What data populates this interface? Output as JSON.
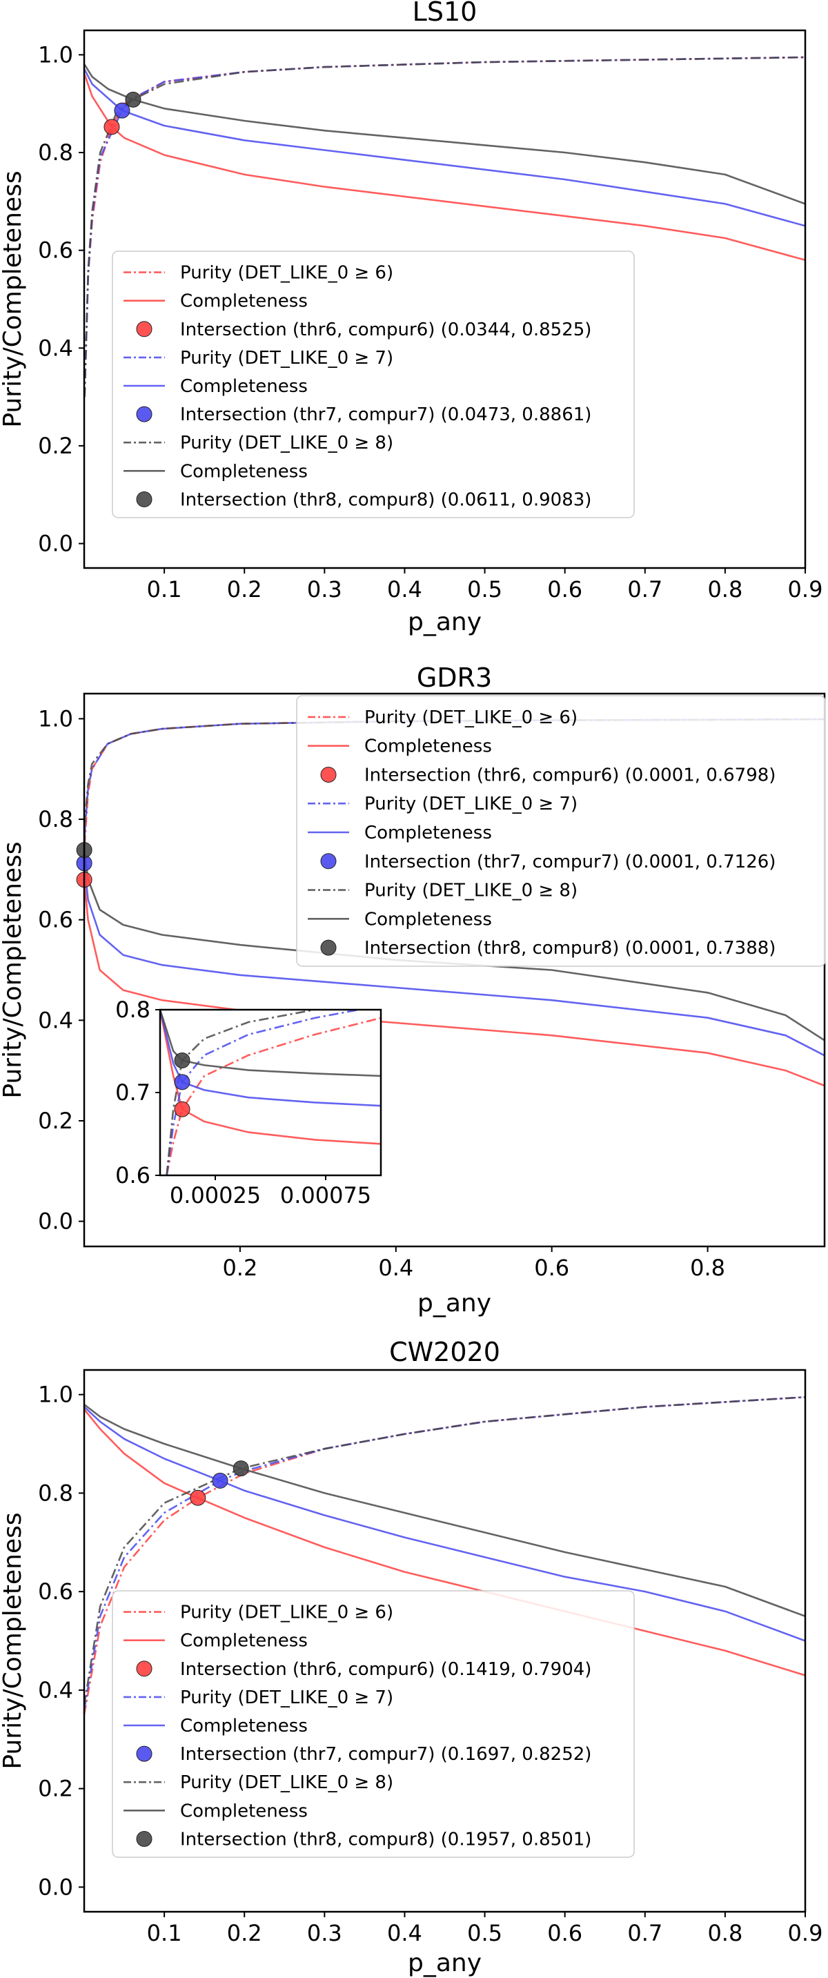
{
  "colors": {
    "thr6": "#ff4040",
    "thr7": "#4848f0",
    "thr8": "#484848"
  },
  "chart_data": [
    {
      "type": "line",
      "title": "LS10",
      "xlabel": "p_any",
      "ylabel": "Purity/Completeness",
      "xlim": [
        0.0,
        0.9
      ],
      "ylim": [
        -0.05,
        1.05
      ],
      "xticks": [
        "0.1",
        "0.2",
        "0.3",
        "0.4",
        "0.5",
        "0.6",
        "0.7",
        "0.8",
        "0.9"
      ],
      "yticks": [
        "0.0",
        "0.2",
        "0.4",
        "0.6",
        "0.8",
        "1.0"
      ],
      "grid": false,
      "legend_position": "lower-left",
      "series": [
        {
          "name": "Purity (DET_LIKE_0 ≥ 6)",
          "style": "dashdot",
          "color": "#ff4040",
          "x": [
            0.0005,
            0.005,
            0.01,
            0.02,
            0.0344,
            0.05,
            0.1,
            0.2,
            0.3,
            0.5,
            0.7,
            0.9
          ],
          "y": [
            0.3,
            0.55,
            0.66,
            0.78,
            0.8525,
            0.9,
            0.945,
            0.965,
            0.975,
            0.985,
            0.99,
            0.995
          ]
        },
        {
          "name": "Completeness",
          "style": "solid",
          "color": "#ff4040",
          "x": [
            0.0005,
            0.01,
            0.0344,
            0.05,
            0.1,
            0.2,
            0.3,
            0.4,
            0.5,
            0.6,
            0.7,
            0.8,
            0.9
          ],
          "y": [
            0.96,
            0.915,
            0.8525,
            0.83,
            0.795,
            0.755,
            0.73,
            0.71,
            0.69,
            0.67,
            0.65,
            0.625,
            0.58
          ]
        },
        {
          "name": "Intersection (thr6, compur6) (0.0344, 0.8525)",
          "style": "marker",
          "color": "#ff4040",
          "x": [
            0.0344
          ],
          "y": [
            0.8525
          ]
        },
        {
          "name": "Purity (DET_LIKE_0 ≥ 7)",
          "style": "dashdot",
          "color": "#4848f0",
          "x": [
            0.0005,
            0.005,
            0.01,
            0.02,
            0.0473,
            0.06,
            0.1,
            0.2,
            0.3,
            0.5,
            0.7,
            0.9
          ],
          "y": [
            0.3,
            0.55,
            0.67,
            0.79,
            0.8861,
            0.91,
            0.945,
            0.965,
            0.975,
            0.985,
            0.99,
            0.995
          ]
        },
        {
          "name": "Completeness",
          "style": "solid",
          "color": "#4848f0",
          "x": [
            0.0005,
            0.01,
            0.0473,
            0.1,
            0.2,
            0.3,
            0.4,
            0.5,
            0.6,
            0.7,
            0.8,
            0.9
          ],
          "y": [
            0.97,
            0.94,
            0.8861,
            0.855,
            0.825,
            0.805,
            0.785,
            0.765,
            0.745,
            0.72,
            0.695,
            0.65
          ]
        },
        {
          "name": "Intersection (thr7, compur7) (0.0473, 0.8861)",
          "style": "marker",
          "color": "#4848f0",
          "x": [
            0.0473
          ],
          "y": [
            0.8861
          ]
        },
        {
          "name": "Purity (DET_LIKE_0 ≥ 8)",
          "style": "dashdot",
          "color": "#484848",
          "x": [
            0.0005,
            0.005,
            0.01,
            0.02,
            0.04,
            0.0611,
            0.1,
            0.2,
            0.3,
            0.5,
            0.7,
            0.9
          ],
          "y": [
            0.3,
            0.56,
            0.68,
            0.8,
            0.88,
            0.9083,
            0.94,
            0.965,
            0.975,
            0.985,
            0.99,
            0.995
          ]
        },
        {
          "name": "Completeness",
          "style": "solid",
          "color": "#484848",
          "x": [
            0.0005,
            0.01,
            0.03,
            0.0611,
            0.1,
            0.2,
            0.3,
            0.4,
            0.5,
            0.6,
            0.7,
            0.8,
            0.9
          ],
          "y": [
            0.98,
            0.955,
            0.93,
            0.9083,
            0.89,
            0.865,
            0.845,
            0.83,
            0.815,
            0.8,
            0.78,
            0.755,
            0.695
          ]
        },
        {
          "name": "Intersection (thr8, compur8) (0.0611, 0.9083)",
          "style": "marker",
          "color": "#484848",
          "x": [
            0.0611
          ],
          "y": [
            0.9083
          ]
        }
      ]
    },
    {
      "type": "line",
      "title": "GDR3",
      "xlabel": "p_any",
      "ylabel": "Purity/Completeness",
      "xlim": [
        0.0,
        0.95
      ],
      "ylim": [
        -0.05,
        1.05
      ],
      "xticks": [
        "0.2",
        "0.4",
        "0.6",
        "0.8"
      ],
      "yticks": [
        "0.0",
        "0.2",
        "0.4",
        "0.6",
        "0.8",
        "1.0"
      ],
      "grid": false,
      "legend_position": "upper-right",
      "series": [
        {
          "name": "Purity (DET_LIKE_0 ≥ 6)",
          "style": "dashdot",
          "color": "#ff4040",
          "x": [
            0.0,
            0.0001,
            0.001,
            0.005,
            0.01,
            0.03,
            0.06,
            0.1,
            0.2,
            0.4,
            0.6,
            0.8,
            0.95
          ],
          "y": [
            0.6,
            0.6798,
            0.76,
            0.85,
            0.9,
            0.95,
            0.97,
            0.98,
            0.99,
            0.995,
            0.997,
            0.998,
            0.999
          ]
        },
        {
          "name": "Completeness",
          "style": "solid",
          "color": "#ff4040",
          "x": [
            0.0,
            0.0001,
            0.005,
            0.02,
            0.05,
            0.1,
            0.2,
            0.4,
            0.6,
            0.8,
            0.9,
            0.95
          ],
          "y": [
            0.68,
            0.6798,
            0.6,
            0.5,
            0.46,
            0.44,
            0.42,
            0.395,
            0.37,
            0.335,
            0.3,
            0.27
          ]
        },
        {
          "name": "Intersection (thr6, compur6) (0.0001, 0.6798)",
          "style": "marker",
          "color": "#ff4040",
          "x": [
            0.0001
          ],
          "y": [
            0.6798
          ]
        },
        {
          "name": "Purity (DET_LIKE_0 ≥ 7)",
          "style": "dashdot",
          "color": "#4848f0",
          "x": [
            0.0,
            0.0001,
            0.001,
            0.005,
            0.01,
            0.03,
            0.06,
            0.1,
            0.2,
            0.4,
            0.6,
            0.8,
            0.95
          ],
          "y": [
            0.62,
            0.7126,
            0.78,
            0.86,
            0.9,
            0.95,
            0.97,
            0.98,
            0.99,
            0.995,
            0.997,
            0.998,
            0.999
          ]
        },
        {
          "name": "Completeness",
          "style": "solid",
          "color": "#4848f0",
          "x": [
            0.0,
            0.0001,
            0.005,
            0.02,
            0.05,
            0.1,
            0.2,
            0.4,
            0.6,
            0.8,
            0.9,
            0.95
          ],
          "y": [
            0.72,
            0.7126,
            0.64,
            0.57,
            0.53,
            0.51,
            0.49,
            0.465,
            0.44,
            0.405,
            0.37,
            0.33
          ]
        },
        {
          "name": "Intersection (thr7, compur7) (0.0001, 0.7126)",
          "style": "marker",
          "color": "#4848f0",
          "x": [
            0.0001
          ],
          "y": [
            0.7126
          ]
        },
        {
          "name": "Purity (DET_LIKE_0 ≥ 8)",
          "style": "dashdot",
          "color": "#484848",
          "x": [
            0.0,
            0.0001,
            0.001,
            0.005,
            0.01,
            0.03,
            0.06,
            0.1,
            0.2,
            0.4,
            0.6,
            0.8,
            0.95
          ],
          "y": [
            0.64,
            0.7388,
            0.8,
            0.87,
            0.91,
            0.95,
            0.97,
            0.98,
            0.99,
            0.995,
            0.997,
            0.998,
            0.999
          ]
        },
        {
          "name": "Completeness",
          "style": "solid",
          "color": "#484848",
          "x": [
            0.0,
            0.0001,
            0.005,
            0.02,
            0.05,
            0.1,
            0.2,
            0.4,
            0.6,
            0.8,
            0.9,
            0.95
          ],
          "y": [
            0.745,
            0.7388,
            0.68,
            0.62,
            0.59,
            0.57,
            0.55,
            0.52,
            0.5,
            0.455,
            0.41,
            0.36
          ]
        },
        {
          "name": "Intersection (thr8, compur8) (0.0001, 0.7388)",
          "style": "marker",
          "color": "#484848",
          "x": [
            0.0001
          ],
          "y": [
            0.7388
          ]
        }
      ],
      "inset": {
        "xlim": [
          0.0,
          0.001
        ],
        "ylim": [
          0.6,
          0.8
        ],
        "xticks": [
          "0.00025",
          "0.00075"
        ],
        "yticks": [
          "0.6",
          "0.7",
          "0.8"
        ],
        "series": [
          {
            "color": "#ff4040",
            "style": "dashdot",
            "x": [
              3e-05,
              6e-05,
              0.0001,
              0.0002,
              0.0004,
              0.0007,
              0.001
            ],
            "y": [
              0.6,
              0.64,
              0.6798,
              0.72,
              0.745,
              0.77,
              0.79
            ]
          },
          {
            "color": "#ff4040",
            "style": "solid",
            "x": [
              0.0,
              6e-05,
              0.0001,
              0.0002,
              0.0004,
              0.0007,
              0.001
            ],
            "y": [
              0.8,
              0.72,
              0.6798,
              0.665,
              0.652,
              0.643,
              0.638
            ]
          },
          {
            "color": "#4848f0",
            "style": "dashdot",
            "x": [
              3e-05,
              6e-05,
              0.0001,
              0.0002,
              0.0004,
              0.0007,
              0.001
            ],
            "y": [
              0.6,
              0.66,
              0.7126,
              0.745,
              0.77,
              0.79,
              0.805
            ]
          },
          {
            "color": "#4848f0",
            "style": "solid",
            "x": [
              0.0,
              6e-05,
              0.0001,
              0.0002,
              0.0004,
              0.0007,
              0.001
            ],
            "y": [
              0.8,
              0.735,
              0.7126,
              0.703,
              0.694,
              0.688,
              0.684
            ]
          },
          {
            "color": "#484848",
            "style": "dashdot",
            "x": [
              3e-05,
              6e-05,
              0.0001,
              0.0002,
              0.0004,
              0.0007,
              0.001
            ],
            "y": [
              0.6,
              0.68,
              0.7388,
              0.765,
              0.785,
              0.8,
              0.81
            ]
          },
          {
            "color": "#484848",
            "style": "solid",
            "x": [
              0.0,
              6e-05,
              0.0001,
              0.0002,
              0.0004,
              0.0007,
              0.001
            ],
            "y": [
              0.8,
              0.75,
              0.7388,
              0.733,
              0.727,
              0.723,
              0.72
            ]
          }
        ],
        "points": [
          {
            "color": "#ff4040",
            "x": 0.0001,
            "y": 0.6798
          },
          {
            "color": "#4848f0",
            "x": 0.0001,
            "y": 0.7126
          },
          {
            "color": "#484848",
            "x": 0.0001,
            "y": 0.7388
          }
        ]
      }
    },
    {
      "type": "line",
      "title": "CW2020",
      "xlabel": "p_any",
      "ylabel": "Purity/Completeness",
      "xlim": [
        0.0,
        0.9
      ],
      "ylim": [
        -0.05,
        1.05
      ],
      "xticks": [
        "0.1",
        "0.2",
        "0.3",
        "0.4",
        "0.5",
        "0.6",
        "0.7",
        "0.8",
        "0.9"
      ],
      "yticks": [
        "0.0",
        "0.2",
        "0.4",
        "0.6",
        "0.8",
        "1.0"
      ],
      "grid": false,
      "legend_position": "lower-left",
      "series": [
        {
          "name": "Purity (DET_LIKE_0 ≥ 6)",
          "style": "dashdot",
          "color": "#ff4040",
          "x": [
            0.0,
            0.02,
            0.05,
            0.1,
            0.1419,
            0.2,
            0.3,
            0.4,
            0.5,
            0.6,
            0.7,
            0.8,
            0.9
          ],
          "y": [
            0.35,
            0.53,
            0.65,
            0.745,
            0.7904,
            0.84,
            0.89,
            0.92,
            0.945,
            0.96,
            0.975,
            0.985,
            0.995
          ]
        },
        {
          "name": "Completeness",
          "style": "solid",
          "color": "#ff4040",
          "x": [
            0.0,
            0.02,
            0.05,
            0.1,
            0.1419,
            0.2,
            0.3,
            0.4,
            0.5,
            0.6,
            0.7,
            0.8,
            0.9
          ],
          "y": [
            0.97,
            0.93,
            0.88,
            0.82,
            0.7904,
            0.75,
            0.69,
            0.64,
            0.6,
            0.56,
            0.52,
            0.48,
            0.43
          ]
        },
        {
          "name": "Intersection (thr6, compur6) (0.1419, 0.7904)",
          "style": "marker",
          "color": "#ff4040",
          "x": [
            0.1419
          ],
          "y": [
            0.7904
          ]
        },
        {
          "name": "Purity (DET_LIKE_0 ≥ 7)",
          "style": "dashdot",
          "color": "#4848f0",
          "x": [
            0.0,
            0.02,
            0.05,
            0.1,
            0.1697,
            0.2,
            0.3,
            0.4,
            0.5,
            0.6,
            0.7,
            0.8,
            0.9
          ],
          "y": [
            0.36,
            0.55,
            0.67,
            0.76,
            0.8252,
            0.845,
            0.89,
            0.92,
            0.945,
            0.96,
            0.975,
            0.985,
            0.995
          ]
        },
        {
          "name": "Completeness",
          "style": "solid",
          "color": "#4848f0",
          "x": [
            0.0,
            0.02,
            0.05,
            0.1,
            0.1697,
            0.2,
            0.3,
            0.4,
            0.5,
            0.6,
            0.7,
            0.8,
            0.9
          ],
          "y": [
            0.975,
            0.945,
            0.91,
            0.87,
            0.8252,
            0.805,
            0.755,
            0.71,
            0.67,
            0.63,
            0.6,
            0.56,
            0.5
          ]
        },
        {
          "name": "Intersection (thr7, compur7) (0.1697, 0.8252)",
          "style": "marker",
          "color": "#4848f0",
          "x": [
            0.1697
          ],
          "y": [
            0.8252
          ]
        },
        {
          "name": "Purity (DET_LIKE_0 ≥ 8)",
          "style": "dashdot",
          "color": "#484848",
          "x": [
            0.0,
            0.02,
            0.05,
            0.1,
            0.1957,
            0.3,
            0.4,
            0.5,
            0.6,
            0.7,
            0.8,
            0.9
          ],
          "y": [
            0.37,
            0.57,
            0.69,
            0.78,
            0.8501,
            0.89,
            0.92,
            0.945,
            0.96,
            0.975,
            0.985,
            0.995
          ]
        },
        {
          "name": "Completeness",
          "style": "solid",
          "color": "#484848",
          "x": [
            0.0,
            0.02,
            0.05,
            0.1,
            0.1957,
            0.3,
            0.4,
            0.5,
            0.6,
            0.7,
            0.8,
            0.9
          ],
          "y": [
            0.98,
            0.955,
            0.93,
            0.9,
            0.8501,
            0.8,
            0.76,
            0.72,
            0.68,
            0.645,
            0.61,
            0.55
          ]
        },
        {
          "name": "Intersection (thr8, compur8) (0.1957, 0.8501)",
          "style": "marker",
          "color": "#484848",
          "x": [
            0.1957
          ],
          "y": [
            0.8501
          ]
        }
      ]
    }
  ]
}
